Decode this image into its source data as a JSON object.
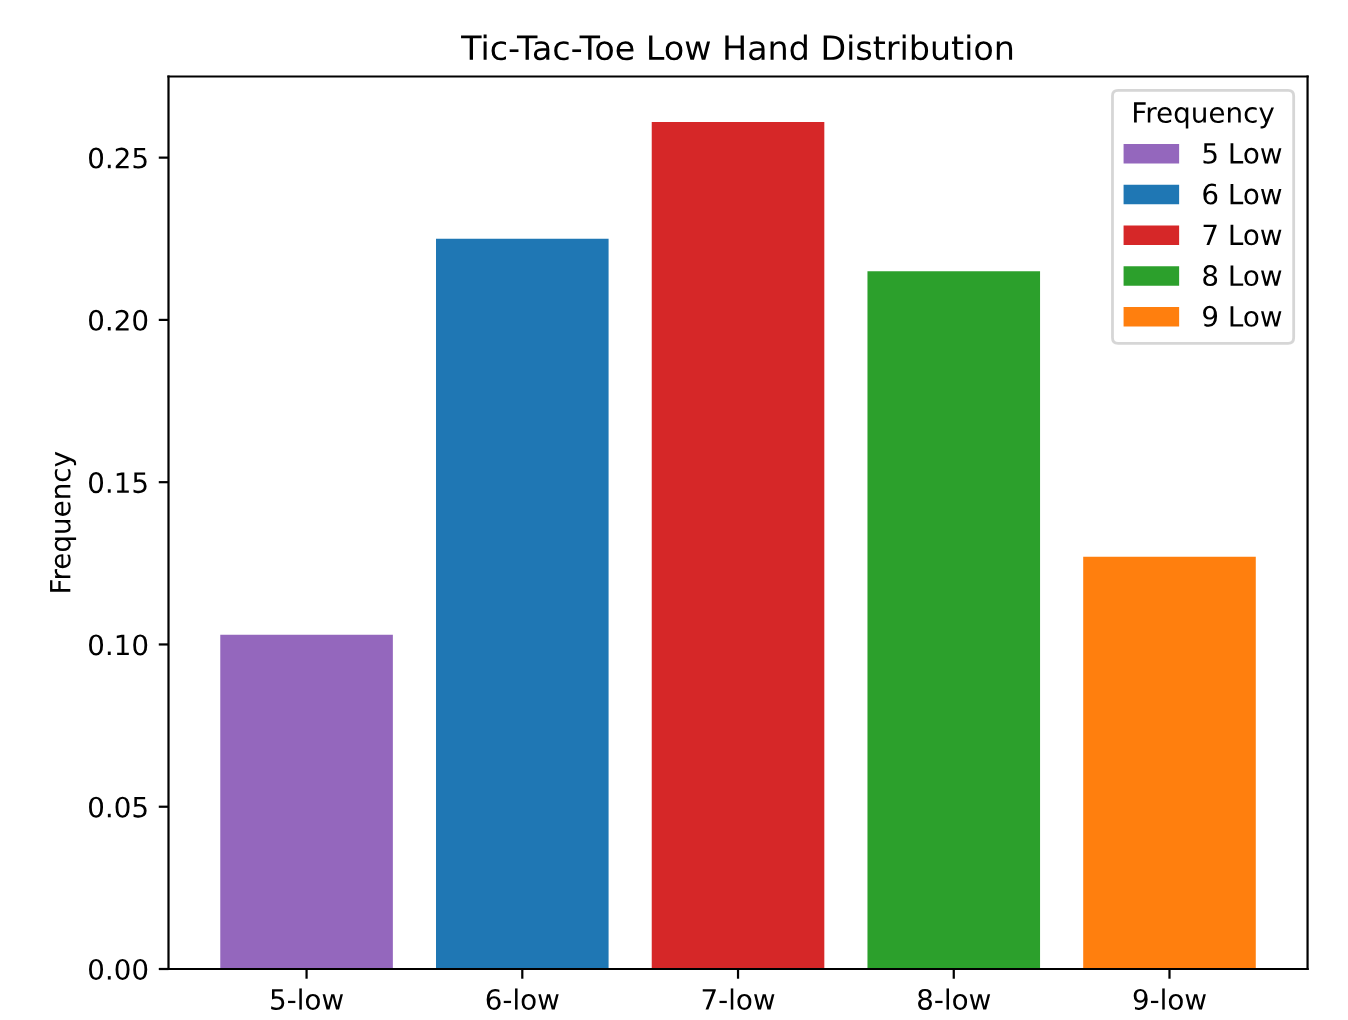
{
  "chart_data": {
    "type": "bar",
    "title": "Tic-Tac-Toe Low Hand Distribution",
    "ylabel": "Frequency",
    "legend_title": "Frequency",
    "categories": [
      "5-low",
      "6-low",
      "7-low",
      "8-low",
      "9-low"
    ],
    "series": [
      {
        "name": "5 Low",
        "color": "#9467bd",
        "values": [
          0.103,
          null,
          null,
          null,
          null
        ]
      },
      {
        "name": "6 Low",
        "color": "#1f77b4",
        "values": [
          null,
          0.225,
          null,
          null,
          null
        ]
      },
      {
        "name": "7 Low",
        "color": "#d62728",
        "values": [
          null,
          null,
          0.261,
          null,
          null
        ]
      },
      {
        "name": "8 Low",
        "color": "#2ca02c",
        "values": [
          null,
          null,
          null,
          0.215,
          null
        ]
      },
      {
        "name": "9 Low",
        "color": "#ff7f0e",
        "values": [
          null,
          null,
          null,
          null,
          0.127
        ]
      }
    ],
    "ylim": [
      0,
      0.275
    ],
    "yticks": [
      {
        "value": 0,
        "label": "0.00"
      },
      {
        "value": 0.05,
        "label": "0.05"
      },
      {
        "value": 0.1,
        "label": "0.10"
      },
      {
        "value": 0.15,
        "label": "0.15"
      },
      {
        "value": 0.2,
        "label": "0.20"
      },
      {
        "value": 0.25,
        "label": "0.25"
      }
    ],
    "legend": "top right"
  }
}
